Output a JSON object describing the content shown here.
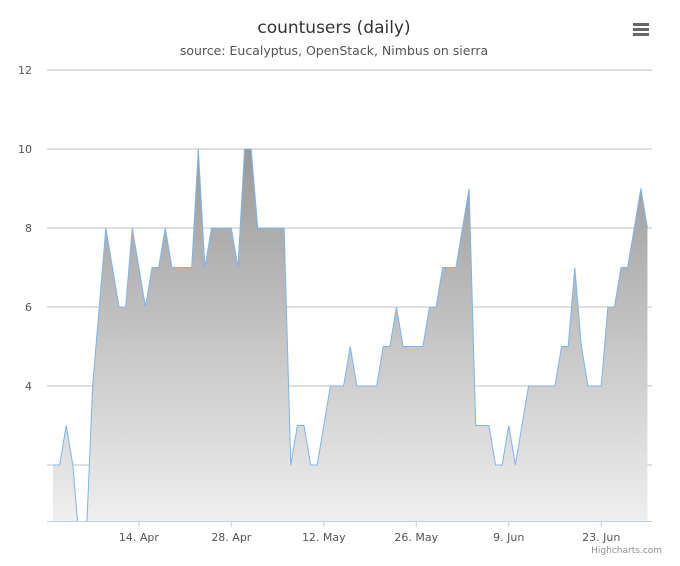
{
  "chart_data": {
    "type": "area",
    "title": "countusers (daily)",
    "subtitle": "source: Eucalyptus, OpenStack, Nimbus on sierra",
    "credits": "Highcharts.com",
    "xlabel": "",
    "ylabel": "",
    "ylim": [
      1,
      12
    ],
    "y_ticks": [
      4,
      6,
      8,
      10,
      12
    ],
    "y_gridlines": [
      2,
      4,
      6,
      8,
      10,
      12
    ],
    "grid": true,
    "x_start": "2013-04-01",
    "x_ticks": [
      {
        "date": "2013-04-14",
        "label": "14. Apr"
      },
      {
        "date": "2013-04-28",
        "label": "28. Apr"
      },
      {
        "date": "2013-05-12",
        "label": "12. May"
      },
      {
        "date": "2013-05-26",
        "label": "26. May"
      },
      {
        "date": "2013-06-09",
        "label": "9. Jun"
      },
      {
        "date": "2013-06-23",
        "label": "23. Jun"
      }
    ],
    "series": [
      {
        "values": [
          2,
          2,
          3,
          2,
          0,
          0,
          4,
          6,
          8,
          7,
          6,
          6,
          8,
          7,
          6,
          7,
          7,
          8,
          7,
          7,
          7,
          7,
          10,
          7,
          8,
          8,
          8,
          8,
          7,
          10,
          10,
          8,
          8,
          8,
          8,
          8,
          2,
          3,
          3,
          2,
          2,
          3,
          4,
          4,
          4,
          5,
          4,
          4,
          4,
          4,
          5,
          5,
          6,
          5,
          5,
          5,
          5,
          6,
          6,
          7,
          7,
          7,
          8,
          9,
          3,
          3,
          3,
          2,
          2,
          3,
          2,
          3,
          4,
          4,
          4,
          4,
          4,
          5,
          5,
          7,
          5,
          4,
          4,
          4,
          6,
          6,
          7,
          7,
          8,
          9,
          8
        ]
      }
    ],
    "colors": {
      "line": "#7cb5ec",
      "fill_top": "#999999",
      "fill_bottom": "#f4f4f4",
      "grid": "#c0c0c0"
    },
    "menu_icon": "hamburger-menu-icon"
  }
}
